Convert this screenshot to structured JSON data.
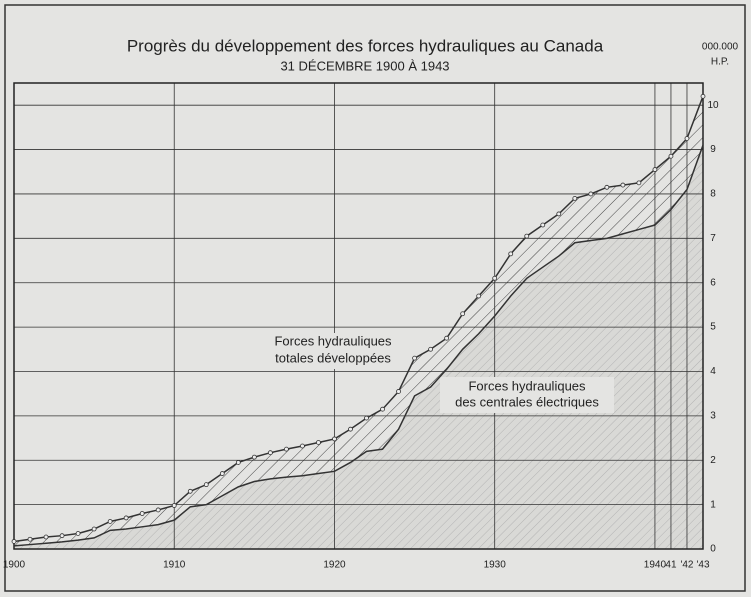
{
  "chart_data": {
    "type": "line",
    "title": "Progrès du développement des forces hydrauliques au Canada",
    "subtitle": "31 DÉCEMBRE 1900 À 1943",
    "y_axis_label": [
      "000.000",
      "H.P."
    ],
    "annotations": [
      [
        "Forces hydrauliques",
        "totales développées"
      ],
      [
        "Forces hydrauliques",
        "des centrales électriques"
      ]
    ],
    "x": [
      1900,
      1901,
      1902,
      1903,
      1904,
      1905,
      1906,
      1907,
      1908,
      1909,
      1910,
      1911,
      1912,
      1913,
      1914,
      1915,
      1916,
      1917,
      1918,
      1919,
      1920,
      1921,
      1922,
      1923,
      1924,
      1925,
      1926,
      1927,
      1928,
      1929,
      1930,
      1931,
      1932,
      1933,
      1934,
      1935,
      1936,
      1937,
      1938,
      1939,
      1940,
      1941,
      1942,
      1943
    ],
    "series": [
      {
        "name": "Forces hydrauliques totales développées",
        "color": "#333333",
        "values": [
          0.17,
          0.22,
          0.27,
          0.3,
          0.35,
          0.45,
          0.62,
          0.7,
          0.8,
          0.88,
          0.98,
          1.3,
          1.45,
          1.7,
          1.95,
          2.07,
          2.17,
          2.25,
          2.32,
          2.4,
          2.48,
          2.7,
          2.95,
          3.15,
          3.55,
          4.3,
          4.5,
          4.75,
          5.3,
          5.7,
          6.1,
          6.65,
          7.05,
          7.3,
          7.55,
          7.9,
          8.0,
          8.15,
          8.2,
          8.25,
          8.55,
          8.85,
          9.25,
          10.2
        ]
      },
      {
        "name": "Forces hydrauliques des centrales électriques",
        "color": "#333333",
        "values": [
          0.07,
          0.1,
          0.13,
          0.16,
          0.2,
          0.25,
          0.42,
          0.45,
          0.5,
          0.55,
          0.65,
          0.95,
          1.0,
          1.2,
          1.4,
          1.52,
          1.58,
          1.62,
          1.65,
          1.7,
          1.75,
          1.95,
          2.2,
          2.25,
          2.7,
          3.45,
          3.65,
          4.05,
          4.5,
          4.85,
          5.25,
          5.7,
          6.1,
          6.35,
          6.6,
          6.9,
          6.95,
          7.0,
          7.1,
          7.2,
          7.3,
          7.65,
          8.1,
          9.1
        ]
      }
    ],
    "xlim": [
      1900,
      1943
    ],
    "xticks": [
      1900,
      1910,
      1920,
      1930,
      1940,
      {
        "value": 1941,
        "label": "41"
      },
      {
        "value": 1942,
        "label": "'42"
      },
      {
        "value": 1943,
        "label": "'43"
      }
    ],
    "ylim": [
      0,
      10.5
    ],
    "yticks": [
      0,
      1,
      2,
      3,
      4,
      5,
      6,
      7,
      8,
      9,
      10
    ],
    "grid": true
  }
}
